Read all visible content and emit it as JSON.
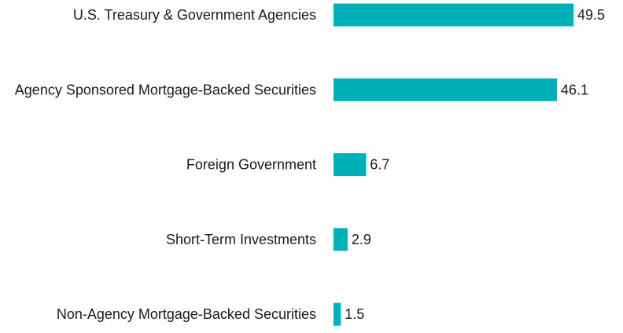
{
  "chart_data": {
    "type": "bar",
    "orientation": "horizontal",
    "categories": [
      "U.S. Treasury & Government Agencies",
      "Agency Sponsored Mortgage-Backed Securities",
      "Foreign Government",
      "Short-Term Investments",
      "Non-Agency Mortgage-Backed Securities"
    ],
    "values": [
      49.5,
      46.1,
      6.7,
      2.9,
      1.5
    ],
    "value_labels": [
      "49.5",
      "46.1",
      "6.7",
      "2.9",
      "1.5"
    ],
    "xlim": [
      0,
      49.5
    ],
    "grid": false,
    "legend": "none",
    "bar_color": "#00b0b9"
  }
}
